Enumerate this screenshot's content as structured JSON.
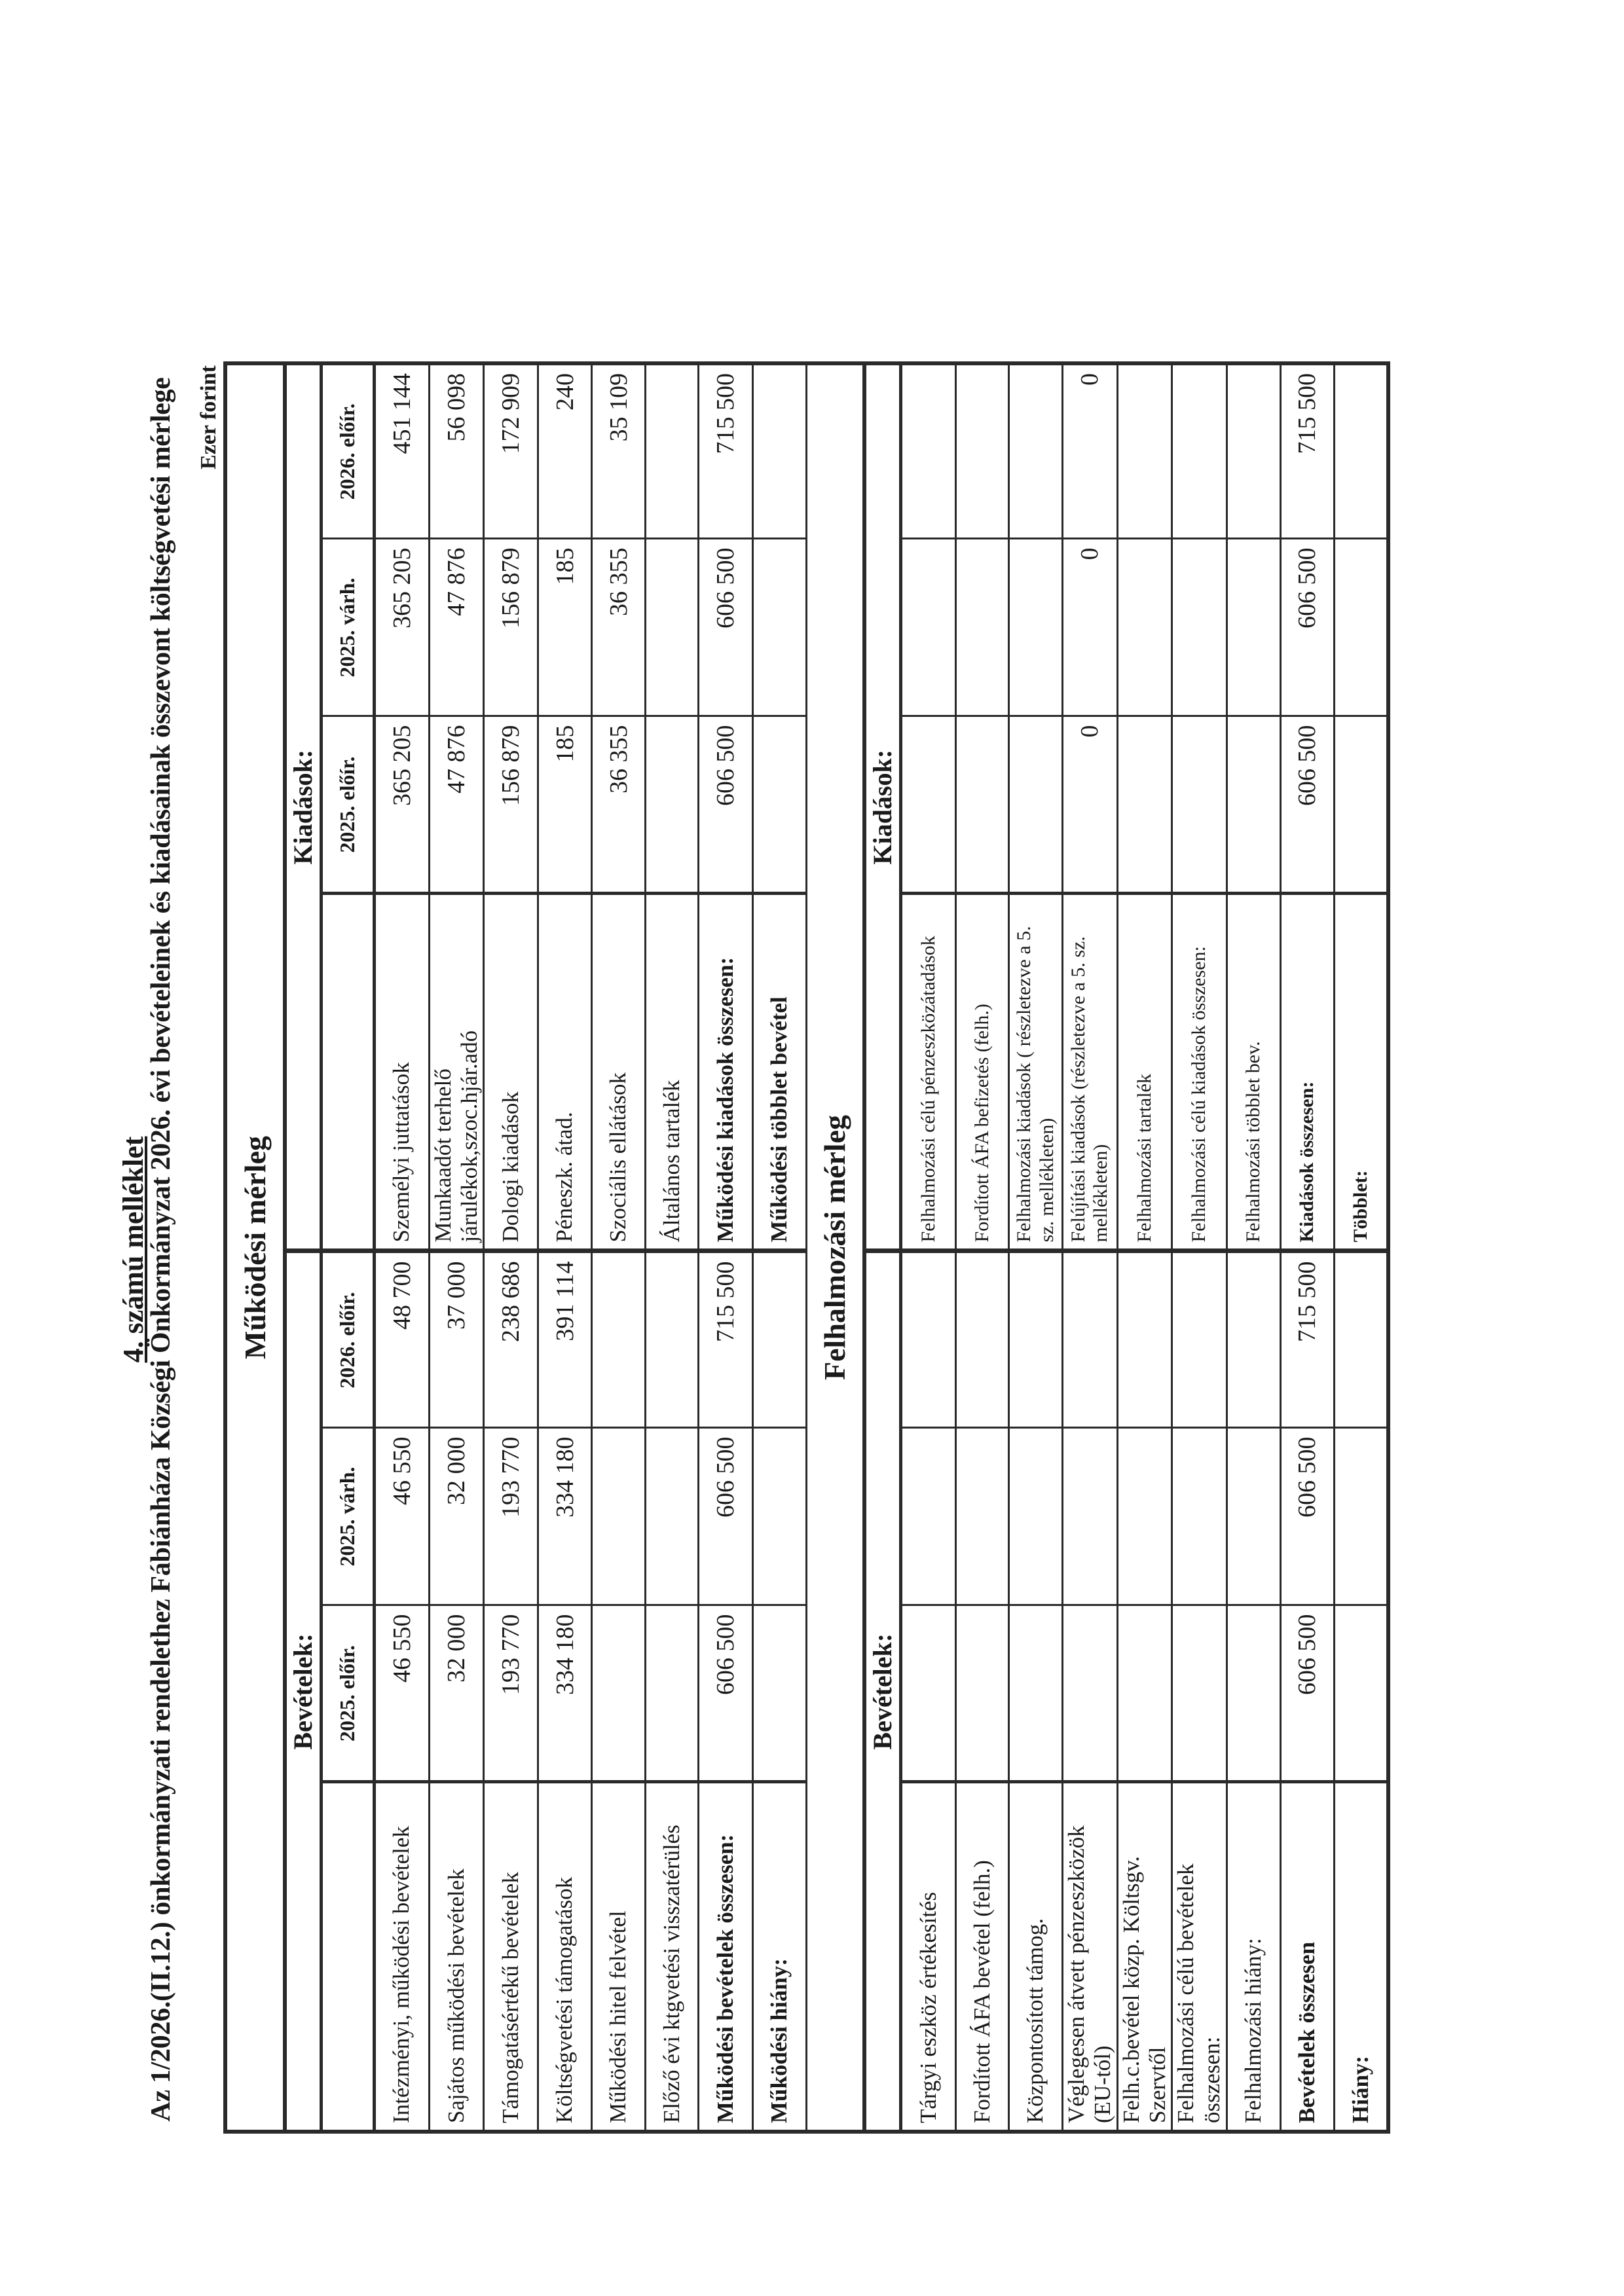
{
  "header": {
    "annex": "4. számú melléklet",
    "title": "Az 1/2026.(II.12.) önkormányzati rendelethez Fábiánháza Községi Önkormányzat 2026. évi bevételeinek és kiadásainak összevont költségvetési mérlege",
    "unit": "Ezer forint"
  },
  "columns": [
    "2025. előír.",
    "2025. várh.",
    "2026. előír."
  ],
  "operating": {
    "title": "Működési mérleg",
    "revenue_heading": "Bevételek:",
    "expense_heading": "Kiadások:",
    "rows": [
      {
        "revenue": {
          "label": "Intézményi, működési bevételek",
          "values": [
            "46 550",
            "46 550",
            "48 700"
          ]
        },
        "expense": {
          "label": "Személyi juttatások",
          "values": [
            "365 205",
            "365 205",
            "451 144"
          ]
        }
      },
      {
        "revenue": {
          "label": "Sajátos működési bevételek",
          "values": [
            "32 000",
            "32 000",
            "37 000"
          ]
        },
        "expense": {
          "label": "Munkaadót terhelő járulékok,szoc.hjár.adó",
          "values": [
            "47 876",
            "47 876",
            "56 098"
          ]
        }
      },
      {
        "revenue": {
          "label": "Támogatásértékű bevételek",
          "values": [
            "193 770",
            "193 770",
            "238 686"
          ]
        },
        "expense": {
          "label": "Dologi kiadások",
          "values": [
            "156 879",
            "156 879",
            "172 909"
          ]
        }
      },
      {
        "revenue": {
          "label": "Költségvetési támogatások",
          "values": [
            "334 180",
            "334 180",
            "391 114"
          ]
        },
        "expense": {
          "label": "Péneszk. átad.",
          "values": [
            "185",
            "185",
            "240"
          ]
        }
      },
      {
        "revenue": {
          "label": "Működési hitel felvétel",
          "values": [
            "",
            "",
            ""
          ]
        },
        "expense": {
          "label": "Szociális ellátások",
          "values": [
            "36 355",
            "36 355",
            "35 109"
          ]
        }
      },
      {
        "revenue": {
          "label": "Előző évi ktgvetési visszatérülés",
          "values": [
            "",
            "",
            ""
          ]
        },
        "expense": {
          "label": "Általános tartalék",
          "values": [
            "",
            "",
            ""
          ]
        }
      },
      {
        "revenue": {
          "label": "Működési bevételek összesen:",
          "values": [
            "606 500",
            "606 500",
            "715 500"
          ]
        },
        "expense": {
          "label": "Működési kiadások összesen:",
          "values": [
            "606 500",
            "606 500",
            "715 500"
          ]
        }
      },
      {
        "revenue": {
          "label": "Működési hiány:",
          "values": [
            "",
            "",
            ""
          ]
        },
        "expense": {
          "label": "Működési többlet bevétel",
          "values": [
            "",
            "",
            ""
          ]
        }
      }
    ]
  },
  "capital": {
    "title": "Felhalmozási mérleg",
    "revenue_heading": "Bevételek:",
    "expense_heading": "Kiadások:",
    "rows": [
      {
        "revenue": {
          "label": "Tárgyi eszköz értékesítés",
          "values": [
            "",
            "",
            ""
          ]
        },
        "expense": {
          "label": "Felhalmozási célú pénzeszközátadások",
          "values": [
            "",
            "",
            ""
          ]
        }
      },
      {
        "revenue": {
          "label": "Fordított ÁFA bevétel (felh.)",
          "values": [
            "",
            "",
            ""
          ]
        },
        "expense": {
          "label": "Fordított ÁFA befizetés (felh.)",
          "values": [
            "",
            "",
            ""
          ]
        }
      },
      {
        "revenue": {
          "label": "Központosított támog.",
          "values": [
            "",
            "",
            ""
          ]
        },
        "expense": {
          "label": "Felhalmozási kiadások ( részletezve a 5. sz. mellékleten)",
          "values": [
            "",
            "",
            ""
          ]
        }
      },
      {
        "revenue": {
          "label": "Véglegesen átvett pénzeszközök (EU-tól)",
          "values": [
            "",
            "",
            ""
          ]
        },
        "expense": {
          "label": "Felújítási kiadások (részletezve a 5. sz. mellékleten)",
          "values": [
            "0",
            "0",
            "0"
          ]
        }
      },
      {
        "revenue": {
          "label": "Felh.c.bevétel közp. Költsgv. Szervtől",
          "values": [
            "",
            "",
            ""
          ]
        },
        "expense": {
          "label": "Felhalmozási tartalék",
          "values": [
            "",
            "",
            ""
          ]
        }
      },
      {
        "revenue": {
          "label": "Felhalmozási célú bevételek összesen:",
          "values": [
            "",
            "",
            ""
          ]
        },
        "expense": {
          "label": "Felhalmozási célú kiadások összesen:",
          "values": [
            "",
            "",
            ""
          ]
        }
      },
      {
        "revenue": {
          "label": "Felhalmozási hiány:",
          "values": [
            "",
            "",
            ""
          ]
        },
        "expense": {
          "label": "Felhalmozási többlet bev.",
          "values": [
            "",
            "",
            ""
          ]
        }
      },
      {
        "revenue": {
          "label": "Bevételek összesen",
          "values": [
            "606 500",
            "606 500",
            "715 500"
          ]
        },
        "expense": {
          "label": "Kiadások összesen:",
          "values": [
            "606 500",
            "606 500",
            "715 500"
          ]
        }
      },
      {
        "revenue": {
          "label": "Hiány:",
          "values": [
            "",
            "",
            ""
          ]
        },
        "expense": {
          "label": "Többlet:",
          "values": [
            "",
            "",
            ""
          ]
        }
      }
    ]
  }
}
